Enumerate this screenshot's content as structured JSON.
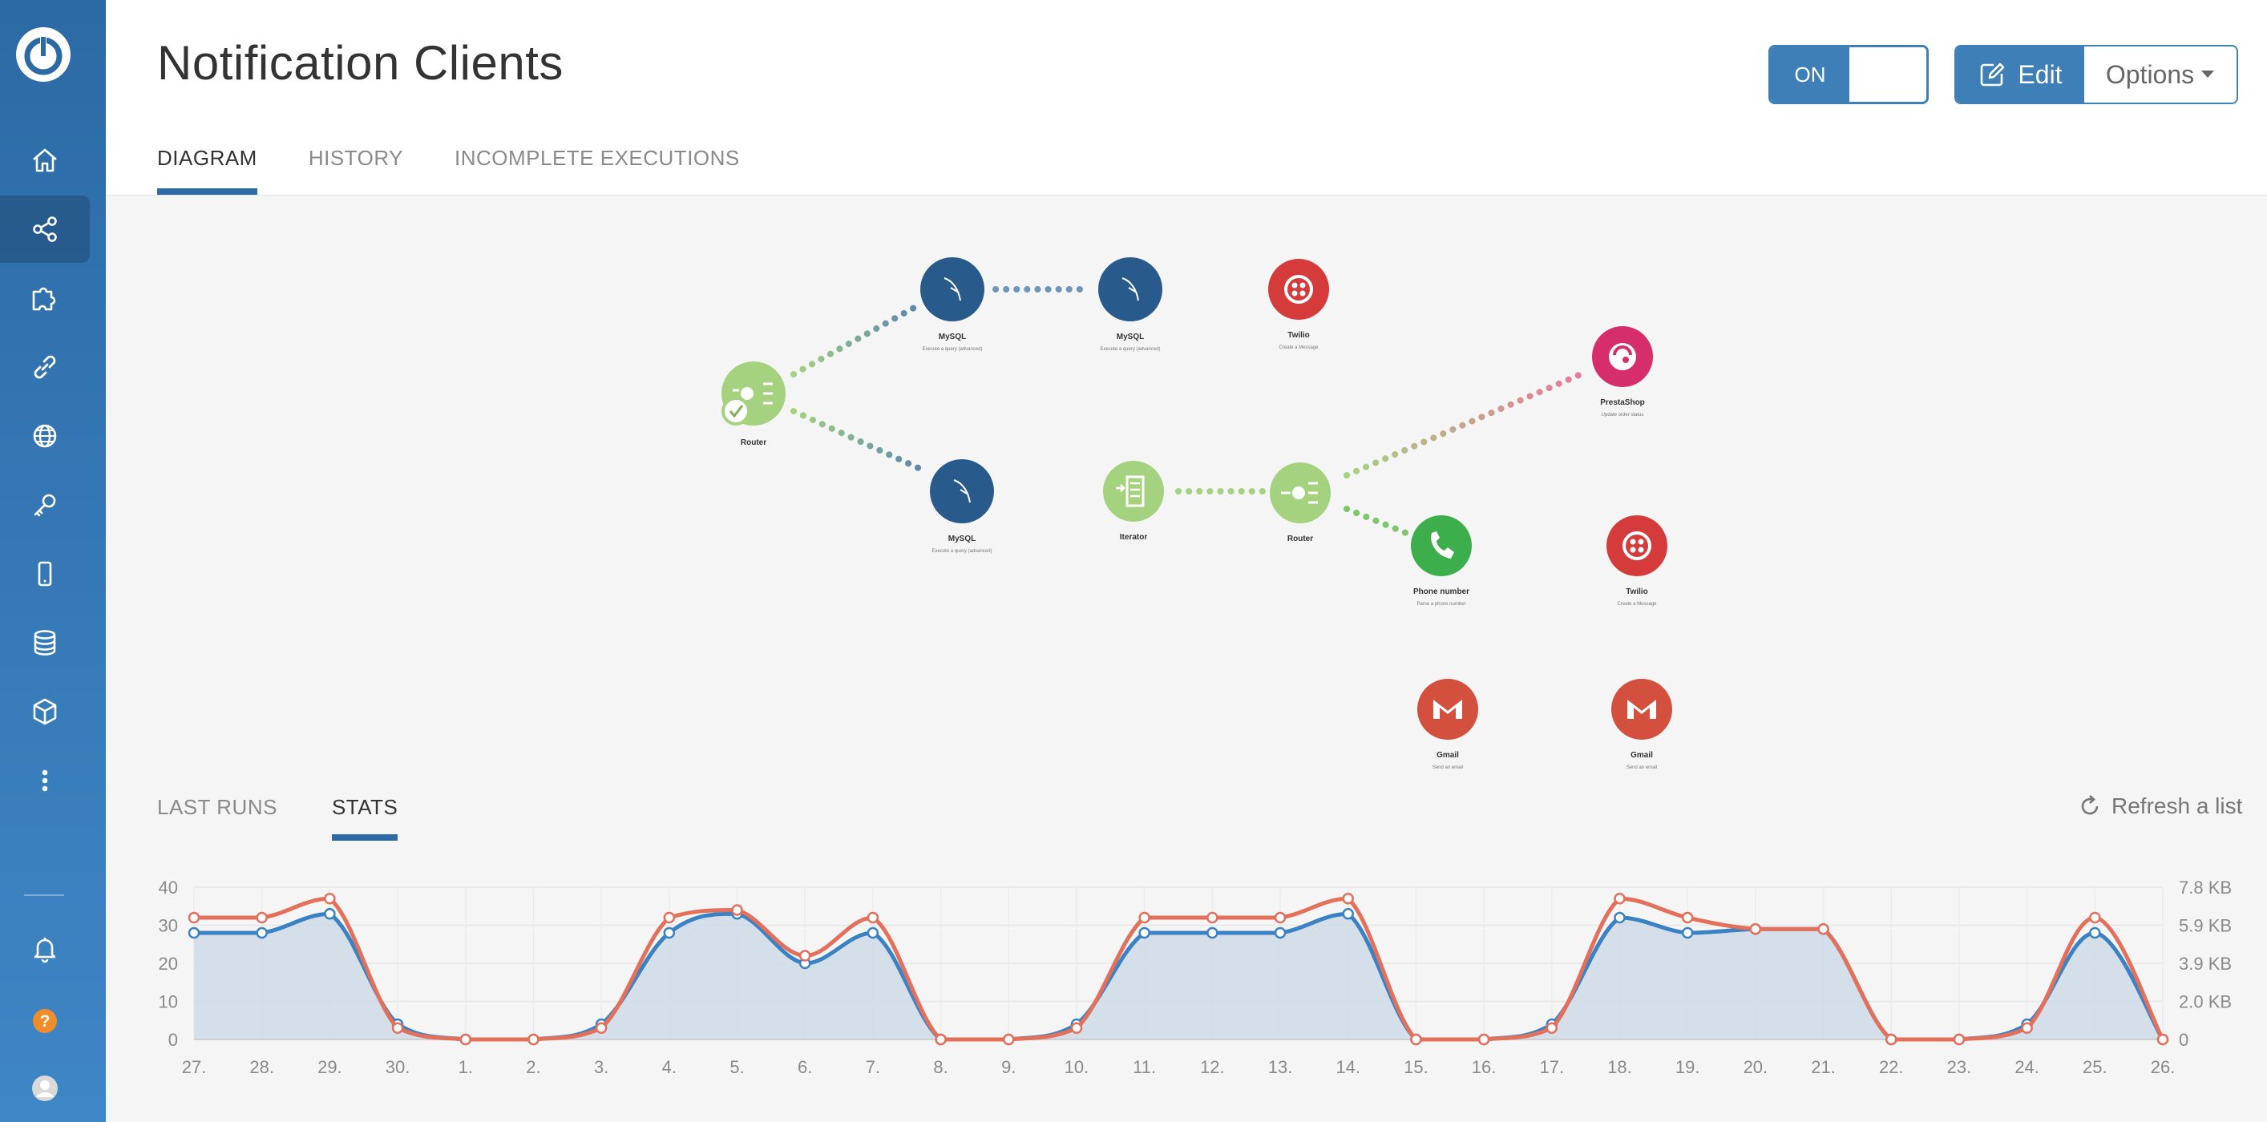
{
  "app": {
    "title": "Notification Clients",
    "tabs": [
      {
        "label": "DIAGRAM",
        "active": true
      },
      {
        "label": "HISTORY",
        "active": false
      },
      {
        "label": "INCOMPLETE EXECUTIONS",
        "active": false
      }
    ],
    "toggle": {
      "label": "ON",
      "state": true
    },
    "edit_label": "Edit",
    "options_label": "Options"
  },
  "sidebar": {
    "items": [
      {
        "icon": "home-icon"
      },
      {
        "icon": "share-icon",
        "active": true
      },
      {
        "icon": "puzzle-icon"
      },
      {
        "icon": "link-icon"
      },
      {
        "icon": "globe-icon"
      },
      {
        "icon": "key-icon"
      },
      {
        "icon": "mobile-icon"
      },
      {
        "icon": "database-icon"
      },
      {
        "icon": "cube-icon"
      },
      {
        "icon": "more-icon"
      }
    ],
    "bottom": [
      {
        "icon": "bell-icon"
      },
      {
        "icon": "help-icon",
        "label": "?"
      },
      {
        "icon": "avatar-icon"
      }
    ]
  },
  "diagram": {
    "modules": [
      {
        "id": "router1",
        "label": "Router",
        "sub": "",
        "type": "router"
      },
      {
        "id": "mysql1",
        "label": "MySQL",
        "sub": "Execute a query (advanced)",
        "type": "mysql"
      },
      {
        "id": "mysql2",
        "label": "MySQL",
        "sub": "Execute a query (advanced)",
        "type": "mysql"
      },
      {
        "id": "twilio1",
        "label": "Twilio",
        "sub": "Create a Message",
        "type": "twilio"
      },
      {
        "id": "presta",
        "label": "PrestaShop",
        "sub": "Update order status",
        "type": "prestashop"
      },
      {
        "id": "mysql3",
        "label": "MySQL",
        "sub": "Execute a query (advanced)",
        "type": "mysql"
      },
      {
        "id": "iterator",
        "label": "Iterator",
        "sub": "",
        "type": "iterator"
      },
      {
        "id": "router2",
        "label": "Router",
        "sub": "",
        "type": "router"
      },
      {
        "id": "phone",
        "label": "Phone number",
        "sub": "Parse a phone number",
        "type": "phone"
      },
      {
        "id": "twilio2",
        "label": "Twilio",
        "sub": "Create a Message",
        "type": "twilio"
      },
      {
        "id": "gmail1",
        "label": "Gmail",
        "sub": "Send an email",
        "type": "gmail"
      },
      {
        "id": "gmail2",
        "label": "Gmail",
        "sub": "Send an email",
        "type": "gmail"
      }
    ]
  },
  "bottom_tabs": [
    {
      "label": "LAST RUNS",
      "active": false
    },
    {
      "label": "STATS",
      "active": true
    }
  ],
  "refresh_label": "Refresh a list",
  "colors": {
    "accent": "#2c6aa5",
    "operations": "#3b82c4",
    "data": "#e3705a",
    "fill": "#cfdbe7"
  },
  "chart_data": {
    "type": "line",
    "categories": [
      "27.",
      "28.",
      "29.",
      "30.",
      "1.",
      "2.",
      "3.",
      "4.",
      "5.",
      "6.",
      "7.",
      "8.",
      "9.",
      "10.",
      "11.",
      "12.",
      "13.",
      "14.",
      "15.",
      "16.",
      "17.",
      "18.",
      "19.",
      "20.",
      "21.",
      "22.",
      "23.",
      "24.",
      "25.",
      "26."
    ],
    "y_ticks_left": [
      "0",
      "10",
      "20",
      "30",
      "40"
    ],
    "y_ticks_right": [
      "0",
      "2.0 KB",
      "3.9 KB",
      "5.9 KB",
      "7.8 KB"
    ],
    "ylim": [
      0,
      40
    ],
    "series": [
      {
        "values": [
          28,
          28,
          33,
          4,
          0,
          0,
          4,
          28,
          33,
          20,
          28,
          0,
          0,
          4,
          28,
          28,
          28,
          33,
          0,
          0,
          4,
          32,
          28,
          29,
          29,
          0,
          0,
          4,
          28,
          0
        ]
      },
      {
        "values": [
          32,
          32,
          37,
          3,
          0,
          0,
          3,
          32,
          34,
          22,
          32,
          0,
          0,
          3,
          32,
          32,
          32,
          37,
          0,
          0,
          3,
          37,
          32,
          29,
          29,
          0,
          0,
          3,
          32,
          0
        ]
      }
    ],
    "grid": true
  }
}
